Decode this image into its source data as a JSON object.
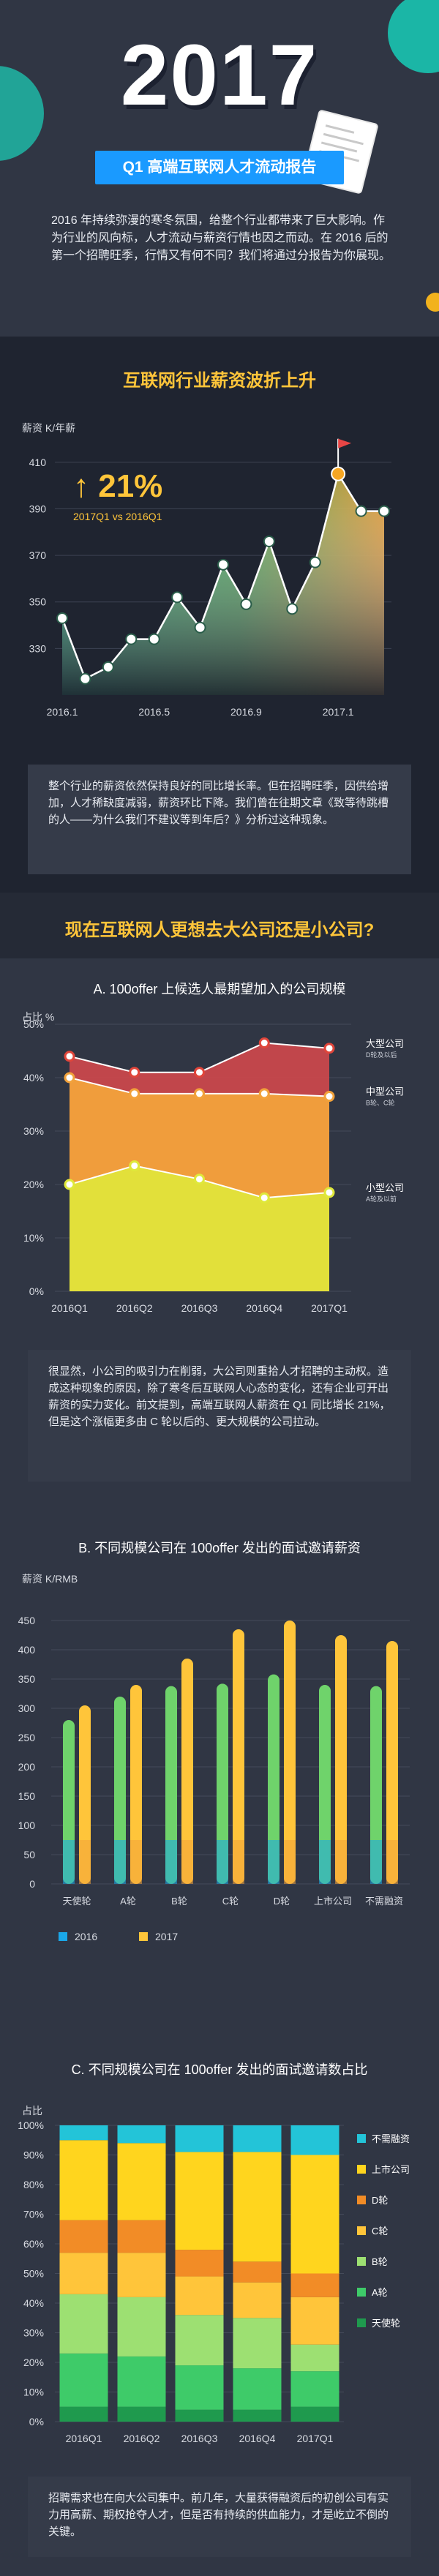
{
  "hero": {
    "year": "2017",
    "title": "Q1 高端互联网人才流动报告",
    "intro": "2016 年持续弥漫的寒冬氛围，给整个行业都带来了巨大影响。作为行业的风向标，人才流动与薪资行情也因之而动。在 2016 后的第一个招聘旺季，行情又有何不同？我们将通过分报告为你展现。"
  },
  "salary_section": {
    "title": "互联网行业薪资波折上升",
    "unit": "薪资 K/年薪",
    "growth": "↑ 21%",
    "growth_sub": "2017Q1 vs 2016Q1",
    "note": "整个行业的薪资依然保持良好的同比增长率。但在招聘旺季，因供给增加，人才稀缺度减弱，薪资环比下降。我们曾在往期文章《致等待跳槽的人——为什么我们不建议等到年后？》分析过这种现象。",
    "colors": {
      "accent": "#ffc53a",
      "line": "#ffffff",
      "area_green": "#1fb37a",
      "area_orange": "#f0a53a"
    }
  },
  "company_section": {
    "title": "现在互联网人更想去大公司还是小公司?",
    "a_title": "A.  100offer 上候选人最期望加入的公司规模",
    "a_unit": "占比 %",
    "a_note": "很显然，小公司的吸引力在削弱，大公司则重拾人才招聘的主动权。造成这种现象的原因，除了寒冬后互联网人心态的变化，还有企业可开出薪资的实力变化。前文提到，高端互联网人薪资在 Q1 同比增长 21%，但是这个涨幅更多由 C 轮以后的、更大规模的公司拉动。",
    "b_title": "B.  不同规模公司在 100offer 发出的面试邀请薪资",
    "b_unit": "薪资 K/RMB",
    "c_title": "C.  不同规模公司在 100offer 发出的面试邀请数占比",
    "c_unit": "占比",
    "c_note": "招聘需求也在向大公司集中。前几年，大量获得融资后的初创公司有实力用高薪、期权抢夺人才，但是否有持续的供血能力，才是屹立不倒的关键。"
  },
  "chart_data": [
    {
      "type": "line",
      "title": "互联网行业薪资波折上升",
      "ylabel": "薪资 K/年薪",
      "ylim": [
        310,
        420
      ],
      "yticks": [
        330,
        350,
        370,
        390,
        410
      ],
      "xtick_labels": [
        "2016.1",
        "2016.5",
        "2016.9",
        "2017.1"
      ],
      "xtick_index": [
        0,
        4,
        8,
        12
      ],
      "values": [
        343,
        317,
        322,
        334,
        334,
        352,
        339,
        366,
        349,
        376,
        347,
        367,
        405,
        389,
        389
      ]
    },
    {
      "type": "area",
      "title": "100offer 上候选人最期望加入的公司规模",
      "ylabel": "占比 %",
      "ylim": [
        0,
        50
      ],
      "categories": [
        "2016Q1",
        "2016Q2",
        "2016Q3",
        "2016Q4",
        "2017Q1"
      ],
      "series": [
        {
          "name": "小型公司",
          "sub": "A轮及以前",
          "values": [
            20,
            23.5,
            21,
            17.5,
            18.5
          ],
          "color": "#dfe83a"
        },
        {
          "name": "中型公司",
          "sub": "B轮、C轮",
          "values": [
            40,
            37,
            37,
            37,
            36.5
          ],
          "color": "#f2a23b"
        },
        {
          "name": "大型公司",
          "sub": "D轮及以后",
          "values": [
            44,
            41,
            41,
            46.5,
            45.5
          ],
          "color": "#e0453a"
        }
      ]
    },
    {
      "type": "bar",
      "title": "不同规模公司在 100offer 发出的面试邀请薪资",
      "ylabel": "薪资 K/RMB",
      "ylim": [
        0,
        500
      ],
      "yticks": [
        0,
        50,
        100,
        150,
        200,
        250,
        300,
        350,
        400,
        450
      ],
      "categories": [
        "天使轮",
        "A轮",
        "B轮",
        "C轮",
        "D轮",
        "上市公司",
        "不需融资"
      ],
      "series": [
        {
          "name": "2016",
          "values": [
            280,
            320,
            338,
            342,
            358,
            340,
            338
          ],
          "color": "#1aa7e8"
        },
        {
          "name": "2017",
          "values": [
            305,
            340,
            385,
            435,
            450,
            425,
            415
          ],
          "color": "#ffc53a"
        }
      ]
    },
    {
      "type": "bar",
      "title": "不同规模公司在 100offer 发出的面试邀请数占比",
      "ylabel": "占比",
      "ylim": [
        0,
        100
      ],
      "yticks": [
        0,
        10,
        20,
        30,
        40,
        50,
        60,
        70,
        80,
        90,
        100
      ],
      "categories": [
        "2016Q1",
        "2016Q2",
        "2016Q3",
        "2016Q4",
        "2017Q1"
      ],
      "series": [
        {
          "name": "天使轮",
          "values": [
            5,
            5,
            4,
            4,
            5
          ],
          "color": "#1f9a4e"
        },
        {
          "name": "A轮",
          "values": [
            18,
            17,
            15,
            14,
            12
          ],
          "color": "#3ecb69"
        },
        {
          "name": "B轮",
          "values": [
            20,
            20,
            17,
            17,
            9
          ],
          "color": "#9de072"
        },
        {
          "name": "C轮",
          "values": [
            14,
            15,
            13,
            12,
            16
          ],
          "color": "#ffc53a"
        },
        {
          "name": "D轮",
          "values": [
            11,
            11,
            9,
            7,
            8
          ],
          "color": "#f28c26"
        },
        {
          "name": "上市公司",
          "values": [
            27,
            26,
            33,
            37,
            40
          ],
          "color": "#ffd51e"
        },
        {
          "name": "不需融资",
          "values": [
            5,
            6,
            9,
            9,
            10
          ],
          "color": "#23c4d8"
        }
      ]
    }
  ]
}
